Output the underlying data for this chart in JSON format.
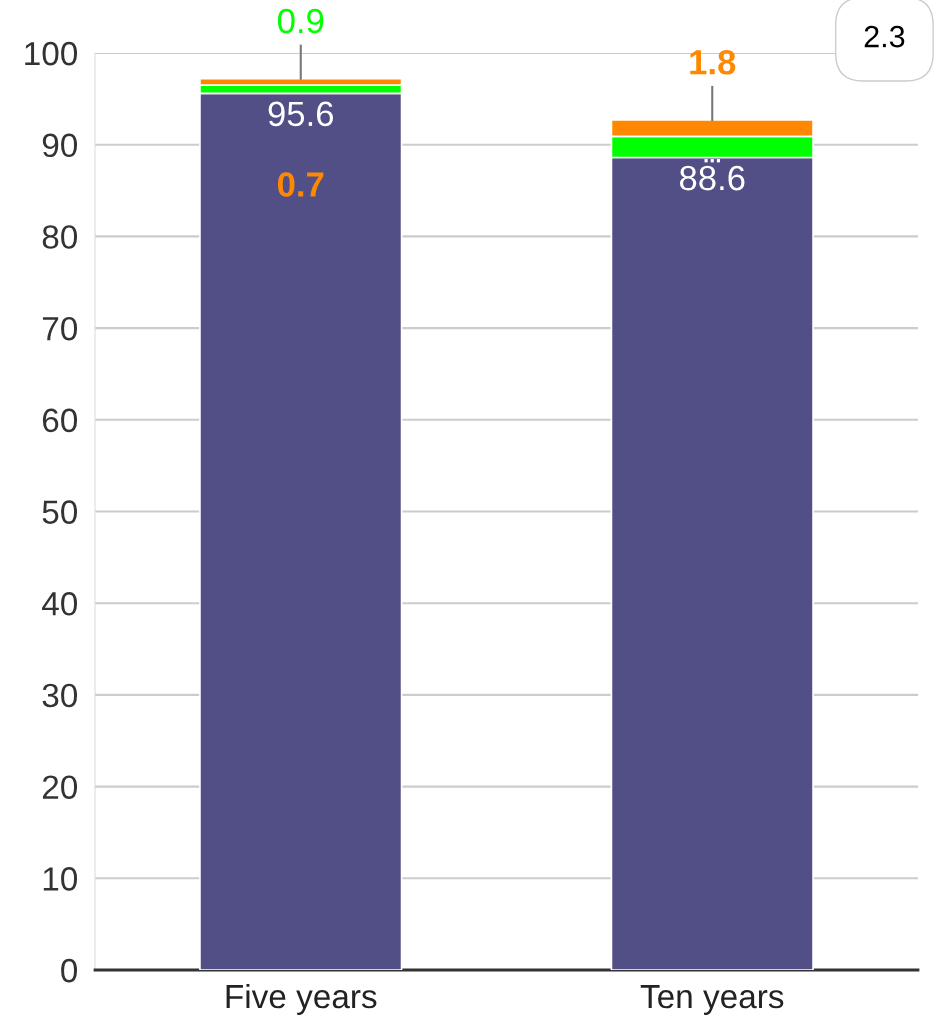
{
  "chart_data": {
    "type": "bar",
    "stacked": true,
    "categories": [
      "Five years",
      "Ten years"
    ],
    "series": [
      {
        "color": "#524f87",
        "values": [
          95.6,
          88.6
        ],
        "value_labels": [
          "95.6",
          "88.6"
        ]
      },
      {
        "color": "#00ff00",
        "values": [
          0.9,
          2.3
        ],
        "value_labels": [
          "0.9",
          "..."
        ]
      },
      {
        "color": "#ff8800",
        "values": [
          0.7,
          1.8
        ],
        "value_labels": [
          "0.7",
          "1.8"
        ]
      }
    ],
    "ylim": [
      0,
      100
    ],
    "yticks": [
      0,
      10,
      20,
      30,
      40,
      50,
      60,
      70,
      80,
      90,
      100
    ],
    "grid": "y",
    "annotations": [
      "2.3"
    ]
  }
}
